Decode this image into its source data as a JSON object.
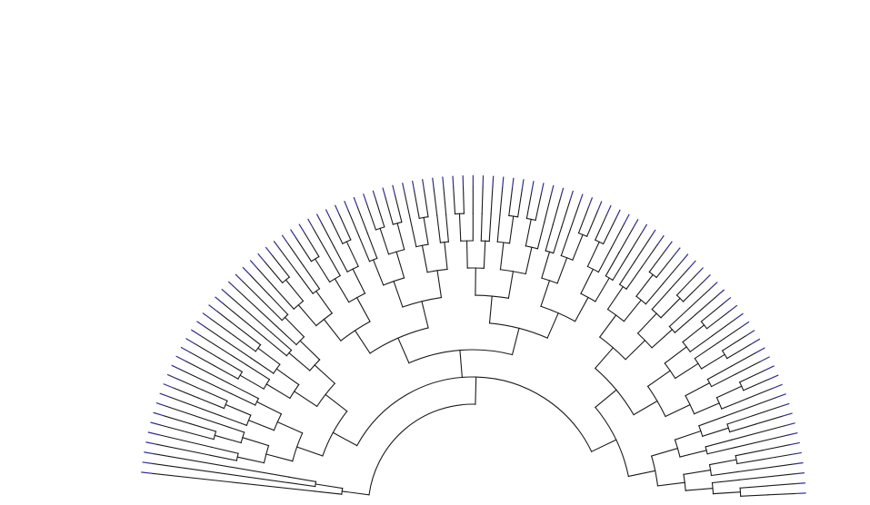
{
  "diagram": {
    "type": "radial-phylogenetic-tree",
    "layout": "semicircle-fan",
    "leaf_labels_visible": false,
    "colors": {
      "background": "#ffffff",
      "branch": "#1a1a1a",
      "leaf_tip": "#2d2f8f"
    },
    "tree": {
      "children": [
        {
          "children": [
            {},
            {
              "children": [
                {},
                {}
              ]
            }
          ]
        },
        {
          "children": [
            {
              "children": [
                {
                  "children": [
                    {
                      "children": [
                        {
                          "children": [
                            {},
                            {}
                          ]
                        },
                        {
                          "children": [
                            {
                              "children": [
                                {},
                                {}
                              ]
                            },
                            {}
                          ]
                        }
                      ]
                    },
                    {
                      "children": [
                        {
                          "children": [
                            {},
                            {
                              "children": [
                                {},
                                {}
                              ]
                            }
                          ]
                        },
                        {
                          "children": [
                            {},
                            {}
                          ]
                        }
                      ]
                    }
                  ]
                },
                {
                  "children": [
                    {
                      "children": [
                        {
                          "children": [
                            {
                              "children": [
                                {},
                                {}
                              ]
                            },
                            {}
                          ]
                        },
                        {
                          "children": [
                            {},
                            {
                              "children": [
                                {},
                                {}
                              ]
                            }
                          ]
                        }
                      ]
                    },
                    {
                      "children": [
                        {
                          "children": [
                            {},
                            {}
                          ]
                        },
                        {
                          "children": [
                            {},
                            {
                              "children": [
                                {},
                                {}
                              ]
                            }
                          ]
                        }
                      ]
                    }
                  ]
                }
              ]
            },
            {
              "children": [
                {
                  "children": [
                    {
                      "children": [
                        {
                          "children": [
                            {
                              "children": [
                                {},
                                {
                                  "children": [
                                    {},
                                    {}
                                  ]
                                }
                              ]
                            },
                            {
                              "children": [
                                {},
                                {}
                              ]
                            }
                          ]
                        },
                        {
                          "children": [
                            {
                              "children": [
                                {
                                  "children": [
                                    {},
                                    {}
                                  ]
                                },
                                {}
                              ]
                            },
                            {
                              "children": [
                                {},
                                {
                                  "children": [
                                    {},
                                    {}
                                  ]
                                }
                              ]
                            }
                          ]
                        }
                      ]
                    },
                    {
                      "children": [
                        {
                          "children": [
                            {
                              "children": [
                                {},
                                {}
                              ]
                            },
                            {
                              "children": [
                                {
                                  "children": [
                                    {},
                                    {}
                                  ]
                                },
                                {
                                  "children": [
                                    {},
                                    {}
                                  ]
                                }
                              ]
                            }
                          ]
                        },
                        {
                          "children": [
                            {
                              "children": [
                                {},
                                {
                                  "children": [
                                    {},
                                    {}
                                  ]
                                }
                              ]
                            },
                            {
                              "children": [
                                {},
                                {}
                              ]
                            }
                          ]
                        }
                      ]
                    }
                  ]
                },
                {
                  "children": [
                    {
                      "children": [
                        {
                          "children": [
                            {
                              "children": [
                                {
                                  "children": [
                                    {},
                                    {}
                                  ]
                                },
                                {}
                              ]
                            },
                            {
                              "children": [
                                {},
                                {}
                              ]
                            }
                          ]
                        },
                        {
                          "children": [
                            {
                              "children": [
                                {},
                                {
                                  "children": [
                                    {},
                                    {}
                                  ]
                                }
                              ]
                            },
                            {
                              "children": [
                                {
                                  "children": [
                                    {},
                                    {}
                                  ]
                                },
                                {}
                              ]
                            }
                          ]
                        }
                      ]
                    },
                    {
                      "children": [
                        {
                          "children": [
                            {
                              "children": [
                                {},
                                {}
                              ]
                            },
                            {
                              "children": [
                                {},
                                {
                                  "children": [
                                    {},
                                    {}
                                  ]
                                }
                              ]
                            }
                          ]
                        },
                        {
                          "children": [
                            {
                              "children": [
                                {
                                  "children": [
                                    {},
                                    {}
                                  ]
                                },
                                {}
                              ]
                            },
                            {
                              "children": [
                                {},
                                {}
                              ]
                            }
                          ]
                        }
                      ]
                    }
                  ]
                }
              ]
            },
            {
              "children": [
                {
                  "children": [
                    {
                      "children": [
                        {
                          "children": [
                            {
                              "children": [
                                {},
                                {}
                              ]
                            },
                            {
                              "children": [
                                {
                                  "children": [
                                    {},
                                    {}
                                  ]
                                },
                                {}
                              ]
                            }
                          ]
                        },
                        {
                          "children": [
                            {
                              "children": [
                                {},
                                {
                                  "children": [
                                    {},
                                    {}
                                  ]
                                }
                              ]
                            },
                            {
                              "children": [
                                {},
                                {}
                              ]
                            }
                          ]
                        }
                      ]
                    },
                    {
                      "children": [
                        {
                          "children": [
                            {
                              "children": [
                                {
                                  "children": [
                                    {},
                                    {}
                                  ]
                                },
                                {}
                              ]
                            },
                            {
                              "children": [
                                {},
                                {
                                  "children": [
                                    {},
                                    {}
                                  ]
                                }
                              ]
                            }
                          ]
                        },
                        {
                          "children": [
                            {
                              "children": [
                                {},
                                {}
                              ]
                            },
                            {
                              "children": [
                                {
                                  "children": [
                                    {},
                                    {}
                                  ]
                                },
                                {}
                              ]
                            }
                          ]
                        }
                      ]
                    }
                  ]
                },
                {
                  "children": [
                    {
                      "children": [
                        {
                          "children": [
                            {},
                            {
                              "children": [
                                {},
                                {}
                              ]
                            }
                          ]
                        },
                        {
                          "children": [
                            {},
                            {}
                          ]
                        }
                      ]
                    },
                    {
                      "children": [
                        {
                          "children": [
                            {
                              "children": [
                                {},
                                {}
                              ]
                            },
                            {}
                          ]
                        },
                        {
                          "children": [
                            {},
                            {
                              "children": [
                                {},
                                {}
                              ]
                            }
                          ]
                        }
                      ]
                    }
                  ]
                }
              ]
            }
          ]
        }
      ]
    }
  }
}
